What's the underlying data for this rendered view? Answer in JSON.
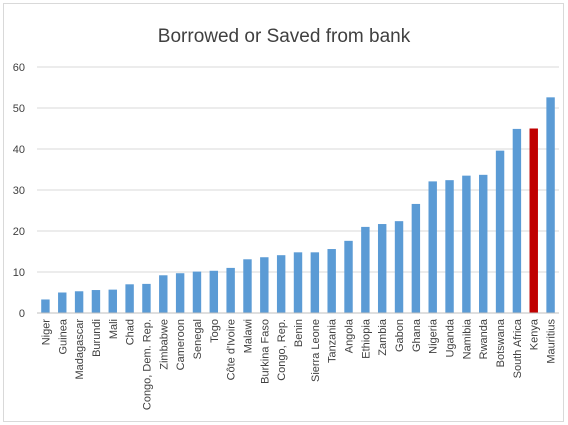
{
  "chart_data": {
    "type": "bar",
    "title": "Borrowed or Saved from bank",
    "xlabel": "",
    "ylabel": "",
    "ylim": [
      0,
      60
    ],
    "yticks": [
      0,
      10,
      20,
      30,
      40,
      50,
      60
    ],
    "grid": true,
    "legend": "none",
    "colors": {
      "default": "#5b9bd5",
      "highlight": "#c00000"
    },
    "highlight_category": "Kenya",
    "categories": [
      "Niger",
      "Guinea",
      "Madagascar",
      "Burundi",
      "Mali",
      "Chad",
      "Congo, Dem. Rep.",
      "Zimbabwe",
      "Cameroon",
      "Senegal",
      "Togo",
      "Côte d'Ivoire",
      "Malawi",
      "Burkina Faso",
      "Congo, Rep.",
      "Benin",
      "Sierra Leone",
      "Tanzania",
      "Angola",
      "Ethiopia",
      "Zambia",
      "Gabon",
      "Ghana",
      "Nigeria",
      "Uganda",
      "Namibia",
      "Rwanda",
      "Botswana",
      "South Africa",
      "Kenya",
      "Mauritius"
    ],
    "values": [
      3.3,
      5.0,
      5.3,
      5.6,
      5.7,
      7.0,
      7.1,
      9.2,
      9.7,
      10.1,
      10.3,
      11.0,
      13.1,
      13.6,
      14.1,
      14.8,
      14.8,
      15.6,
      17.6,
      21.0,
      21.7,
      22.4,
      26.6,
      32.1,
      32.4,
      33.5,
      33.7,
      39.6,
      44.9,
      45.0,
      52.6
    ]
  }
}
